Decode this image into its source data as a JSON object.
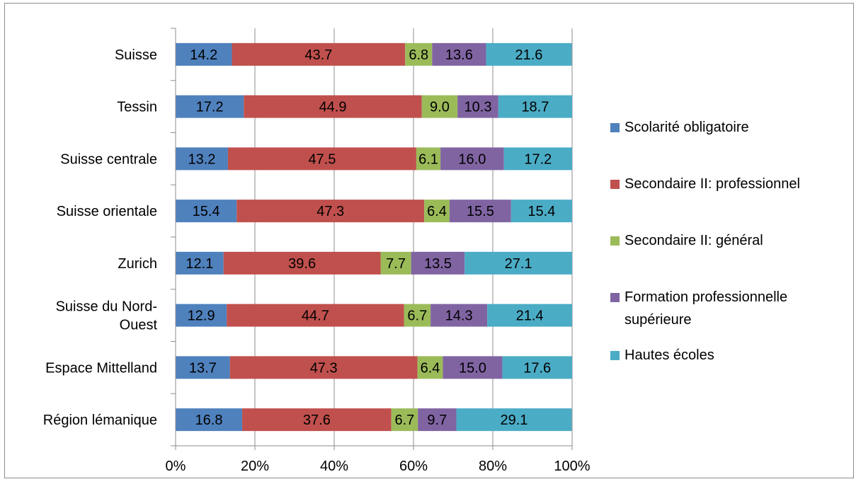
{
  "chart_data": {
    "type": "bar",
    "orientation": "horizontal",
    "stacked": "percent",
    "categories": [
      "Suisse",
      "Tessin",
      "Suisse centrale",
      "Suisse orientale",
      "Zurich",
      "Suisse du Nord-Ouest",
      "Espace Mittelland",
      "Région lémanique"
    ],
    "category_lines": [
      [
        "Suisse"
      ],
      [
        "Tessin"
      ],
      [
        "Suisse centrale"
      ],
      [
        "Suisse orientale"
      ],
      [
        "Zurich"
      ],
      [
        "Suisse du Nord-",
        "Ouest"
      ],
      [
        "Espace Mittelland"
      ],
      [
        "Région lémanique"
      ]
    ],
    "series": [
      {
        "name": "Scolarité obligatoire",
        "color": "#4f81bd",
        "values": [
          14.2,
          17.2,
          13.2,
          15.4,
          12.1,
          12.9,
          13.7,
          16.8
        ],
        "labels": [
          "14.2",
          "17.2",
          "13.2",
          "15.4",
          "12.1",
          "12.9",
          "13.7",
          "16.8"
        ]
      },
      {
        "name": "Secondaire II: professionnel",
        "color": "#c0504d",
        "values": [
          43.7,
          44.9,
          47.5,
          47.3,
          39.6,
          44.7,
          47.3,
          37.6
        ],
        "labels": [
          "43.7",
          "44.9",
          "47.5",
          "47.3",
          "39.6",
          "44.7",
          "47.3",
          "37.6"
        ]
      },
      {
        "name": "Secondaire II: général",
        "color": "#9bbb59",
        "values": [
          6.8,
          9.0,
          6.1,
          6.4,
          7.7,
          6.7,
          6.4,
          6.7
        ],
        "labels": [
          "6.8",
          "9.0",
          "6.1",
          "6.4",
          "7.7",
          "6.7",
          "6.4",
          "6.7"
        ]
      },
      {
        "name": "Formation professionnelle supérieure",
        "legend_lines": [
          "Formation professionnelle",
          "supérieure"
        ],
        "color": "#8064a2",
        "values": [
          13.6,
          10.3,
          16.0,
          15.5,
          13.5,
          14.3,
          15.0,
          9.7
        ],
        "labels": [
          "13.6",
          "10.3",
          "16.0",
          "15.5",
          "13.5",
          "14.3",
          "15.0",
          "9.7"
        ]
      },
      {
        "name": "Hautes écoles",
        "color": "#4bacc6",
        "values": [
          21.6,
          18.7,
          17.2,
          15.4,
          27.1,
          21.4,
          17.6,
          29.1
        ],
        "labels": [
          "21.6",
          "18.7",
          "17.2",
          "15.4",
          "27.1",
          "21.4",
          "17.6",
          "29.1"
        ]
      }
    ],
    "x_ticks": [
      "0%",
      "20%",
      "40%",
      "60%",
      "80%",
      "100%"
    ],
    "xlim": [
      0,
      100
    ],
    "grid": "vertical",
    "legend_position": "right"
  }
}
